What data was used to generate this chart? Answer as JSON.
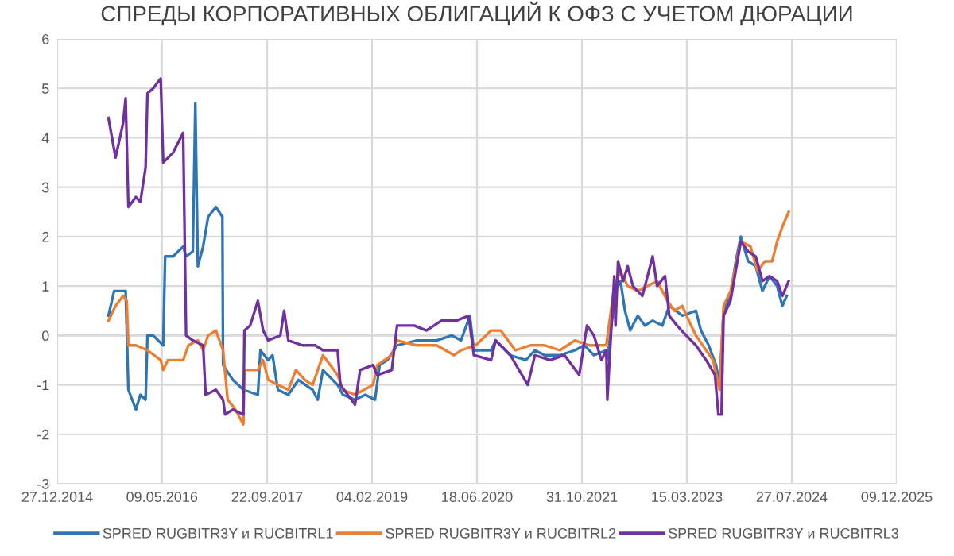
{
  "chart_data": {
    "type": "line",
    "title": "СПРЕДЫ КОРПОРАТИВНЫХ ОБЛИГАЦИЙ К ОФЗ С УЧЕТОМ ДЮРАЦИИ",
    "xlim": [
      "2014-12-27",
      "2025-12-09"
    ],
    "ylim": [
      -3,
      6
    ],
    "yticks": [
      -3,
      -2,
      -1,
      0,
      1,
      2,
      3,
      4,
      5,
      6
    ],
    "xticks": [
      {
        "value": "2014-12-27",
        "label": "27.12.2014"
      },
      {
        "value": "2016-05-09",
        "label": "09.05.2016"
      },
      {
        "value": "2017-09-22",
        "label": "22.09.2017"
      },
      {
        "value": "2019-02-04",
        "label": "04.02.2019"
      },
      {
        "value": "2020-06-18",
        "label": "18.06.2020"
      },
      {
        "value": "2021-10-31",
        "label": "31.10.2021"
      },
      {
        "value": "2023-03-15",
        "label": "15.03.2023"
      },
      {
        "value": "2024-07-27",
        "label": "27.07.2024"
      },
      {
        "value": "2025-12-09",
        "label": "09.12.2025"
      }
    ],
    "grid": true,
    "legend": "bottom",
    "marker": "none",
    "line_style": "solid",
    "series": [
      {
        "name": "SPRED RUGBITR3Y и RUCBITRL1",
        "color": "#2e75b6",
        "x": [
          "2015-08-28",
          "2015-09-24",
          "2015-11-18",
          "2015-12-01",
          "2016-01-06",
          "2016-01-27",
          "2016-02-21",
          "2016-03-01",
          "2016-03-28",
          "2016-05-15",
          "2016-05-24",
          "2016-07-01",
          "2016-08-18",
          "2016-09-01",
          "2016-10-03",
          "2016-10-15",
          "2016-10-27",
          "2016-11-21",
          "2016-12-15",
          "2017-01-21",
          "2017-02-21",
          "2017-02-24",
          "2017-04-12",
          "2017-06-01",
          "2017-08-09",
          "2017-08-21",
          "2017-09-27",
          "2017-10-18",
          "2017-11-12",
          "2018-01-01",
          "2018-02-18",
          "2018-04-27",
          "2018-05-21",
          "2018-06-15",
          "2018-08-24",
          "2018-09-18",
          "2018-11-15",
          "2019-01-03",
          "2019-02-18",
          "2019-03-12",
          "2019-04-18",
          "2019-06-03",
          "2019-09-06",
          "2019-12-09",
          "2020-02-18",
          "2020-04-03",
          "2020-05-15",
          "2020-06-03",
          "2020-08-24",
          "2020-09-15",
          "2020-11-24",
          "2021-02-06",
          "2021-03-21",
          "2021-05-06",
          "2021-07-18",
          "2021-09-27",
          "2021-11-12",
          "2021-12-27",
          "2022-02-24",
          "2022-03-01",
          "2022-04-09",
          "2022-05-03",
          "2022-05-24",
          "2022-06-18",
          "2022-07-24",
          "2022-08-27",
          "2022-10-03",
          "2022-11-18",
          "2022-12-21",
          "2023-02-21",
          "2023-04-27",
          "2023-05-21",
          "2023-06-27",
          "2023-08-01",
          "2023-08-18",
          "2023-09-06",
          "2023-10-09",
          "2023-11-03",
          "2023-11-27",
          "2024-01-01",
          "2024-02-06",
          "2024-03-09",
          "2024-04-12",
          "2024-05-18",
          "2024-06-12",
          "2024-07-03"
        ],
        "values": [
          0.4,
          0.9,
          0.9,
          -1.1,
          -1.5,
          -1.2,
          -1.3,
          0.0,
          0.0,
          -0.2,
          1.6,
          1.6,
          1.8,
          1.6,
          1.7,
          4.7,
          1.4,
          1.8,
          2.4,
          2.6,
          2.4,
          -0.6,
          -0.9,
          -1.1,
          -1.2,
          -0.3,
          -0.5,
          -0.4,
          -1.1,
          -1.2,
          -0.9,
          -1.1,
          -1.3,
          -0.7,
          -1.0,
          -1.2,
          -1.3,
          -1.2,
          -1.3,
          -0.6,
          -0.5,
          -0.2,
          -0.1,
          -0.1,
          0.0,
          -0.1,
          0.4,
          -0.3,
          -0.3,
          -0.1,
          -0.4,
          -0.5,
          -0.3,
          -0.4,
          -0.4,
          -0.3,
          -0.2,
          -0.4,
          -0.3,
          -0.5,
          0.9,
          1.1,
          0.5,
          0.1,
          0.4,
          0.2,
          0.3,
          0.2,
          0.6,
          0.4,
          0.5,
          0.1,
          -0.2,
          -0.6,
          -1.0,
          0.5,
          0.8,
          1.5,
          2.0,
          1.5,
          1.4,
          0.9,
          1.2,
          1.0,
          0.6,
          0.8
        ]
      },
      {
        "name": "SPRED RUGBITR3Y и RUCBITRL2",
        "color": "#ed7d31",
        "x": [
          "2015-08-28",
          "2015-10-01",
          "2015-11-06",
          "2015-11-23",
          "2015-12-01",
          "2016-01-06",
          "2016-03-01",
          "2016-05-03",
          "2016-05-15",
          "2016-06-06",
          "2016-08-18",
          "2016-09-12",
          "2016-10-27",
          "2016-11-21",
          "2016-12-15",
          "2017-01-21",
          "2017-02-24",
          "2017-03-18",
          "2017-04-24",
          "2017-06-01",
          "2017-06-06",
          "2017-08-09",
          "2017-09-03",
          "2017-09-27",
          "2017-11-12",
          "2018-01-01",
          "2018-02-06",
          "2018-03-21",
          "2018-04-27",
          "2018-06-15",
          "2018-08-24",
          "2018-09-18",
          "2018-11-15",
          "2019-02-09",
          "2019-03-01",
          "2019-05-09",
          "2019-06-03",
          "2019-09-06",
          "2019-12-09",
          "2020-03-01",
          "2020-04-03",
          "2020-06-12",
          "2020-08-24",
          "2020-10-09",
          "2020-12-18",
          "2021-02-27",
          "2021-05-06",
          "2021-07-18",
          "2021-09-27",
          "2021-12-06",
          "2022-02-24",
          "2022-04-03",
          "2022-05-03",
          "2022-06-06",
          "2022-07-24",
          "2022-09-09",
          "2022-10-24",
          "2022-12-12",
          "2023-01-15",
          "2023-02-21",
          "2023-03-24",
          "2023-04-27",
          "2023-06-15",
          "2023-07-18",
          "2023-08-18",
          "2023-09-06",
          "2023-10-09",
          "2023-11-27",
          "2024-01-12",
          "2024-02-15",
          "2024-03-21",
          "2024-04-24",
          "2024-05-18",
          "2024-06-12",
          "2024-07-12"
        ],
        "values": [
          0.3,
          0.6,
          0.8,
          0.7,
          -0.2,
          -0.2,
          -0.3,
          -0.5,
          -0.7,
          -0.5,
          -0.5,
          -0.2,
          -0.1,
          -0.3,
          0.0,
          0.1,
          -0.3,
          -1.3,
          -1.5,
          -1.8,
          -0.7,
          -0.7,
          -0.5,
          -0.9,
          -1.0,
          -1.1,
          -0.7,
          -0.9,
          -1.0,
          -0.4,
          -0.8,
          -1.1,
          -1.2,
          -1.0,
          -0.6,
          -0.4,
          -0.1,
          -0.2,
          -0.2,
          -0.4,
          -0.3,
          -0.2,
          0.1,
          0.1,
          -0.3,
          -0.2,
          -0.2,
          -0.3,
          -0.1,
          -0.2,
          -0.2,
          1.0,
          1.3,
          1.0,
          0.9,
          1.0,
          1.1,
          0.7,
          0.5,
          0.6,
          0.3,
          0.0,
          -0.3,
          -0.5,
          -1.1,
          0.6,
          0.9,
          1.9,
          1.8,
          1.3,
          1.5,
          1.5,
          1.9,
          2.2,
          2.5
        ]
      },
      {
        "name": "SPRED RUGBITR3Y и RUCBITRL3",
        "color": "#7030a0",
        "x": [
          "2015-08-28",
          "2015-10-01",
          "2015-11-06",
          "2015-11-18",
          "2015-12-01",
          "2016-01-06",
          "2016-01-27",
          "2016-02-21",
          "2016-03-01",
          "2016-03-28",
          "2016-05-03",
          "2016-05-15",
          "2016-07-01",
          "2016-08-18",
          "2016-09-01",
          "2016-10-03",
          "2016-11-21",
          "2016-12-03",
          "2017-01-21",
          "2017-02-24",
          "2017-03-06",
          "2017-04-12",
          "2017-06-01",
          "2017-06-06",
          "2017-07-03",
          "2017-08-09",
          "2017-09-03",
          "2017-09-27",
          "2017-11-24",
          "2017-12-12",
          "2018-01-01",
          "2018-03-09",
          "2018-05-09",
          "2018-06-15",
          "2018-08-24",
          "2018-09-06",
          "2018-11-15",
          "2018-12-09",
          "2019-02-09",
          "2019-03-01",
          "2019-05-09",
          "2019-06-03",
          "2019-08-24",
          "2019-10-21",
          "2020-01-01",
          "2020-03-12",
          "2020-05-09",
          "2020-06-03",
          "2020-08-24",
          "2020-09-15",
          "2020-11-24",
          "2021-02-15",
          "2021-03-21",
          "2021-06-01",
          "2021-08-09",
          "2021-10-18",
          "2021-11-24",
          "2021-12-27",
          "2022-02-01",
          "2022-02-24",
          "2022-03-01",
          "2022-04-03",
          "2022-04-09",
          "2022-04-21",
          "2022-05-15",
          "2022-06-06",
          "2022-07-01",
          "2022-08-15",
          "2022-10-03",
          "2022-10-24",
          "2022-12-01",
          "2022-12-21",
          "2023-01-27",
          "2023-03-12",
          "2023-04-27",
          "2023-06-15",
          "2023-07-27",
          "2023-08-12",
          "2023-08-27",
          "2023-09-06",
          "2023-10-09",
          "2023-11-27",
          "2024-01-01",
          "2024-02-06",
          "2024-03-09",
          "2024-04-12",
          "2024-05-18",
          "2024-06-12",
          "2024-07-12"
        ],
        "values": [
          4.4,
          3.6,
          4.3,
          4.8,
          2.6,
          2.8,
          2.7,
          3.4,
          4.9,
          5.0,
          5.2,
          3.5,
          3.7,
          4.1,
          0.0,
          -0.1,
          -0.2,
          -1.2,
          -1.1,
          -1.3,
          -1.6,
          -1.5,
          -1.6,
          0.1,
          0.2,
          0.7,
          0.1,
          -0.1,
          0.0,
          0.5,
          -0.1,
          -0.2,
          -0.2,
          -0.3,
          -0.3,
          -1.0,
          -1.4,
          -0.7,
          -0.6,
          -0.8,
          -0.7,
          0.2,
          0.2,
          0.1,
          0.3,
          0.3,
          0.4,
          -0.4,
          -0.5,
          -0.1,
          -0.4,
          -1.0,
          -0.4,
          -0.5,
          -0.4,
          -0.8,
          0.2,
          0.0,
          -0.5,
          -0.3,
          -1.3,
          1.2,
          0.2,
          1.5,
          1.1,
          1.4,
          1.0,
          0.8,
          1.6,
          1.0,
          1.2,
          0.4,
          0.2,
          0.0,
          -0.2,
          -0.5,
          -0.8,
          -1.6,
          -1.6,
          0.4,
          0.7,
          1.9,
          1.7,
          1.6,
          1.1,
          1.2,
          1.1,
          0.8,
          1.1
        ]
      }
    ]
  }
}
